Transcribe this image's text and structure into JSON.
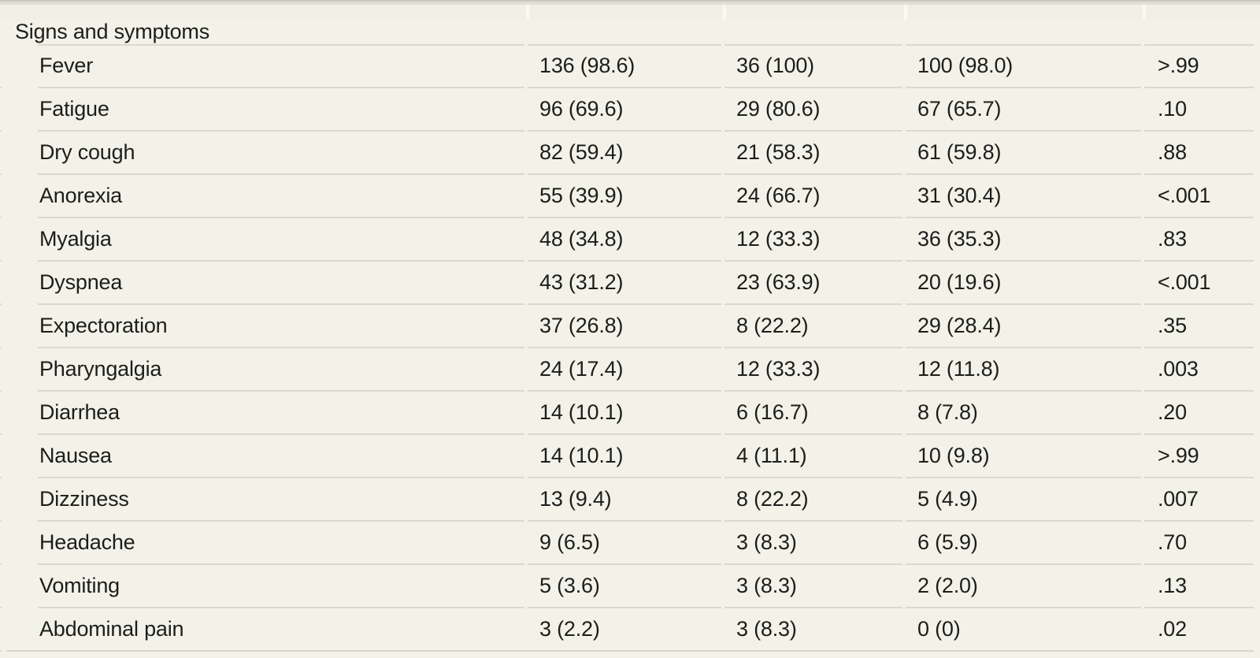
{
  "table": {
    "section_header": "Signs and symptoms",
    "rows": [
      {
        "label": "Fever",
        "values": [
          "136 (98.6)",
          "36 (100)",
          "100 (98.0)"
        ],
        "p_value": ">.99"
      },
      {
        "label": "Fatigue",
        "values": [
          "96 (69.6)",
          "29 (80.6)",
          "67 (65.7)"
        ],
        "p_value": ".10"
      },
      {
        "label": "Dry cough",
        "values": [
          "82 (59.4)",
          "21 (58.3)",
          "61 (59.8)"
        ],
        "p_value": ".88"
      },
      {
        "label": "Anorexia",
        "values": [
          "55 (39.9)",
          "24 (66.7)",
          "31 (30.4)"
        ],
        "p_value": "<.001"
      },
      {
        "label": "Myalgia",
        "values": [
          "48 (34.8)",
          "12 (33.3)",
          "36 (35.3)"
        ],
        "p_value": ".83"
      },
      {
        "label": "Dyspnea",
        "values": [
          "43 (31.2)",
          "23 (63.9)",
          "20 (19.6)"
        ],
        "p_value": "<.001"
      },
      {
        "label": "Expectoration",
        "values": [
          "37 (26.8)",
          "8 (22.2)",
          "29 (28.4)"
        ],
        "p_value": ".35"
      },
      {
        "label": "Pharyngalgia",
        "values": [
          "24 (17.4)",
          "12 (33.3)",
          "12 (11.8)"
        ],
        "p_value": ".003"
      },
      {
        "label": "Diarrhea",
        "values": [
          "14 (10.1)",
          "6 (16.7)",
          "8 (7.8)"
        ],
        "p_value": ".20"
      },
      {
        "label": "Nausea",
        "values": [
          "14 (10.1)",
          "4 (11.1)",
          "10 (9.8)"
        ],
        "p_value": ">.99"
      },
      {
        "label": "Dizziness",
        "values": [
          "13 (9.4)",
          "8 (22.2)",
          "5 (4.9)"
        ],
        "p_value": ".007"
      },
      {
        "label": "Headache",
        "values": [
          "9 (6.5)",
          "3 (8.3)",
          "6 (5.9)"
        ],
        "p_value": ".70"
      },
      {
        "label": "Vomiting",
        "values": [
          "5 (3.6)",
          "3 (8.3)",
          "2 (2.0)"
        ],
        "p_value": ".13"
      },
      {
        "label": "Abdominal pain",
        "values": [
          "3 (2.2)",
          "3 (8.3)",
          "0 (0)"
        ],
        "p_value": ".02"
      }
    ],
    "colors": {
      "background": "#f3f2e9",
      "divider": "#dbd9ce",
      "text": "#1d1d1b",
      "top_rule": "#c9c8be"
    }
  }
}
